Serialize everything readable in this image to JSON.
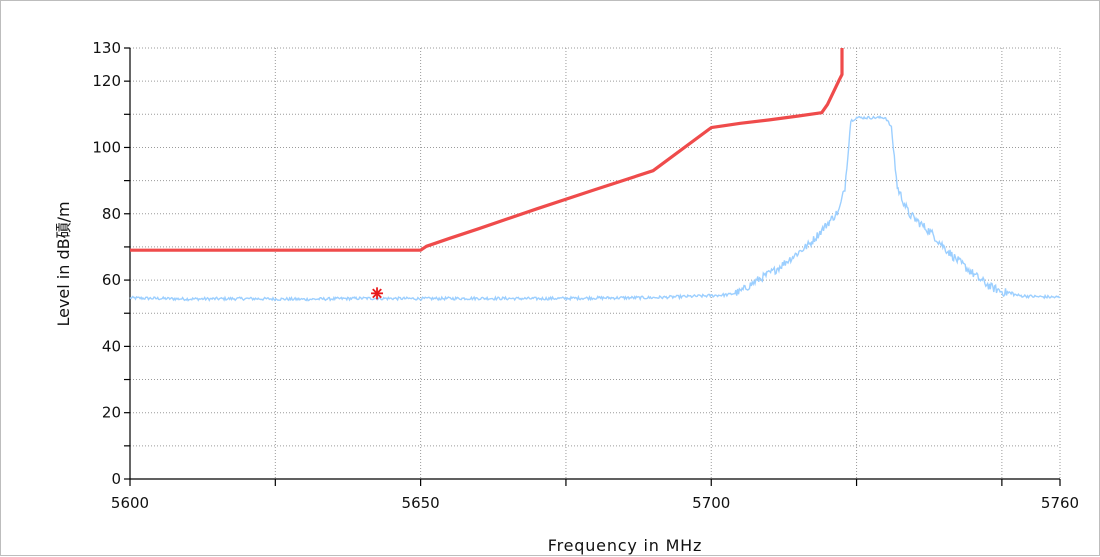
{
  "chart_data": {
    "type": "line",
    "title": "",
    "xlabel": "Frequency in MHz",
    "ylabel": "Level in dB碽/m",
    "xlim": [
      5600,
      5760
    ],
    "ylim": [
      0,
      130
    ],
    "x_ticks": [
      5600,
      5625,
      5650,
      5675,
      5700,
      5725,
      5750,
      5760
    ],
    "x_tick_labels": [
      {
        "value": 5600,
        "text": "5600"
      },
      {
        "value": 5650,
        "text": "5650"
      },
      {
        "value": 5700,
        "text": "5700"
      },
      {
        "value": 5760,
        "text": "5760"
      }
    ],
    "y_ticks": [
      0,
      10,
      20,
      30,
      40,
      50,
      60,
      70,
      80,
      90,
      100,
      110,
      120,
      130
    ],
    "y_tick_labels": [
      {
        "value": 0,
        "text": "0"
      },
      {
        "value": 20,
        "text": "20"
      },
      {
        "value": 40,
        "text": "40"
      },
      {
        "value": 60,
        "text": "60"
      },
      {
        "value": 80,
        "text": "80"
      },
      {
        "value": 100,
        "text": "100"
      },
      {
        "value": 120,
        "text": "120"
      },
      {
        "value": 130,
        "text": "130"
      }
    ],
    "grid": true,
    "series": [
      {
        "color": "#ef4b4b",
        "style": "line",
        "points": [
          [
            5600,
            69
          ],
          [
            5650,
            69
          ],
          [
            5651,
            70.2
          ],
          [
            5655,
            72.6
          ],
          [
            5660,
            75.5
          ],
          [
            5670,
            81.5
          ],
          [
            5680,
            87.3
          ],
          [
            5690,
            93
          ],
          [
            5700,
            106
          ],
          [
            5705,
            107.3
          ],
          [
            5710,
            108.3
          ],
          [
            5715,
            109.5
          ],
          [
            5719,
            110.5
          ],
          [
            5720,
            113
          ],
          [
            5722,
            120.3
          ],
          [
            5722.5,
            122
          ],
          [
            5722.5,
            130
          ]
        ]
      },
      {
        "color": "#9ccfff",
        "style": "line",
        "points": [
          [
            5600,
            54.6
          ],
          [
            5610,
            54.3
          ],
          [
            5620,
            54.4
          ],
          [
            5630,
            54.2
          ],
          [
            5640,
            54.5
          ],
          [
            5650,
            54.4
          ],
          [
            5660,
            54.5
          ],
          [
            5670,
            54.4
          ],
          [
            5680,
            54.6
          ],
          [
            5690,
            54.7
          ],
          [
            5695,
            55.0
          ],
          [
            5700,
            55.3
          ],
          [
            5703,
            55.6
          ],
          [
            5705,
            56.5
          ],
          [
            5708,
            60
          ],
          [
            5711,
            63
          ],
          [
            5714,
            67
          ],
          [
            5717,
            71
          ],
          [
            5719,
            75
          ],
          [
            5721,
            79
          ],
          [
            5722,
            81
          ],
          [
            5723,
            88
          ],
          [
            5724,
            108
          ],
          [
            5725,
            109
          ],
          [
            5730,
            109
          ],
          [
            5731,
            106
          ],
          [
            5732,
            88
          ],
          [
            5734,
            80
          ],
          [
            5736,
            77
          ],
          [
            5738,
            74
          ],
          [
            5740,
            70
          ],
          [
            5742,
            66.5
          ],
          [
            5744,
            63.5
          ],
          [
            5746,
            60.5
          ],
          [
            5748,
            58
          ],
          [
            5750,
            56.5
          ],
          [
            5753,
            55.3
          ],
          [
            5756,
            55
          ],
          [
            5760,
            54.8
          ]
        ]
      },
      {
        "color": "#e8191b",
        "style": "marker",
        "marker": "asterisk",
        "points": [
          [
            5642.5,
            56
          ]
        ]
      }
    ]
  }
}
